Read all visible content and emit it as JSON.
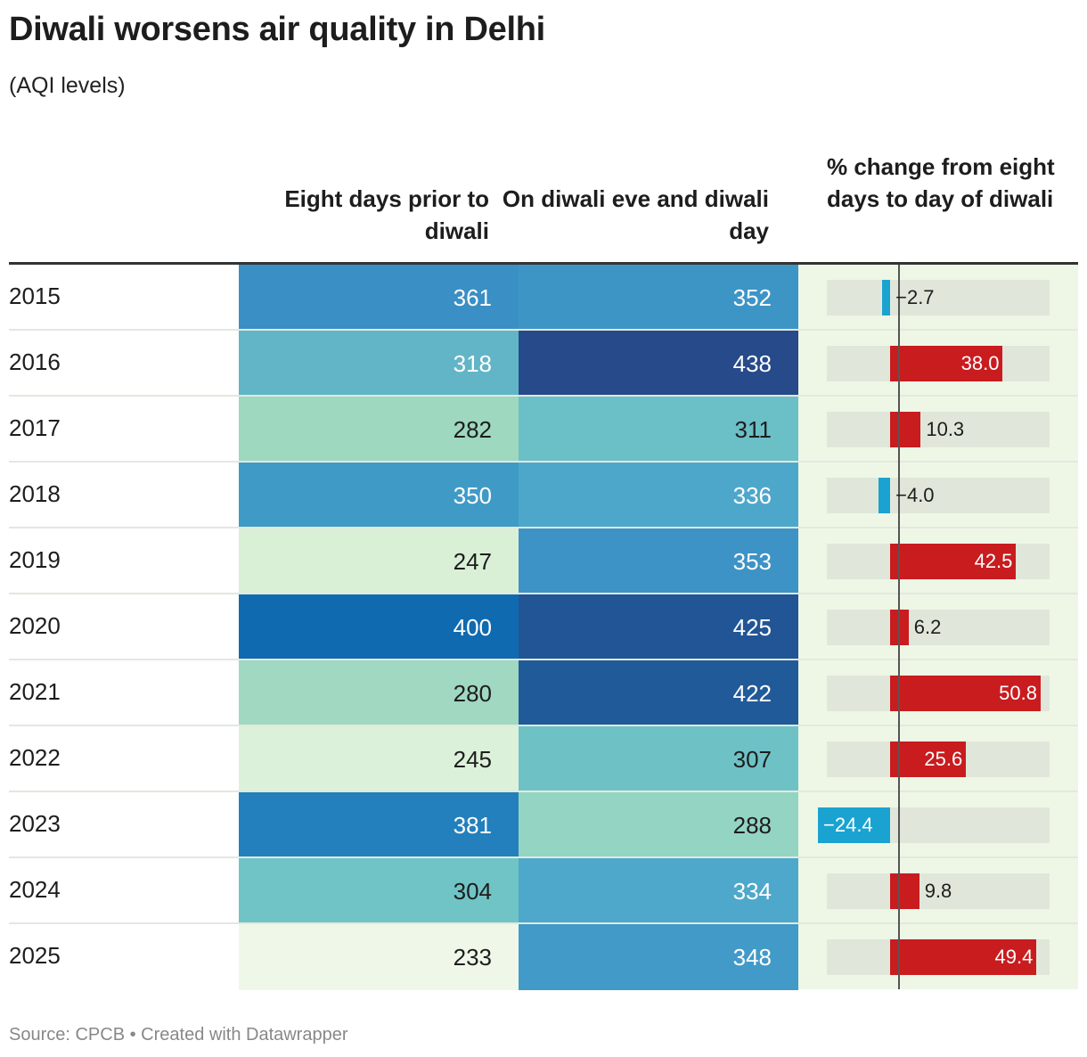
{
  "title": "Diwali worsens air quality in Delhi",
  "subtitle": "(AQI levels)",
  "headers": {
    "col1": "Eight days prior to diwali",
    "col2": "On diwali eve and diwali day",
    "col3": "% change from eight days to day of diwali"
  },
  "source": "Source: CPCB • Created with Datawrapper",
  "colors": {
    "positive": "#c81c1f",
    "negative": "#1aa3d0",
    "track": "#e0e7da",
    "column_bg": "#eef7e6"
  },
  "chart_data": {
    "type": "table",
    "bar_range": [
      -24.4,
      50.8
    ],
    "rows": [
      {
        "year": "2015",
        "prior": "361",
        "prior_color": "#3a8fc4",
        "diwali": "352",
        "diwali_color": "#3d95c6",
        "change": "−2.7",
        "change_value": -2.7
      },
      {
        "year": "2016",
        "prior": "318",
        "prior_color": "#62b5c6",
        "diwali": "438",
        "diwali_color": "#264a8a",
        "change": "38.0",
        "change_value": 38.0
      },
      {
        "year": "2017",
        "prior": "282",
        "prior_color": "#9dd8bf",
        "diwali": "311",
        "diwali_color": "#6bbfc6",
        "change": "10.3",
        "change_value": 10.3
      },
      {
        "year": "2018",
        "prior": "350",
        "prior_color": "#3f9ac6",
        "diwali": "336",
        "diwali_color": "#4da7cb",
        "change": "−4.0",
        "change_value": -4.0
      },
      {
        "year": "2019",
        "prior": "247",
        "prior_color": "#d9f0d6",
        "diwali": "353",
        "diwali_color": "#3d93c5",
        "change": "42.5",
        "change_value": 42.5
      },
      {
        "year": "2020",
        "prior": "400",
        "prior_color": "#0f6ab0",
        "diwali": "425",
        "diwali_color": "#215596",
        "change": "6.2",
        "change_value": 6.2
      },
      {
        "year": "2021",
        "prior": "280",
        "prior_color": "#a0d8c2",
        "diwali": "422",
        "diwali_color": "#215a99",
        "change": "50.8",
        "change_value": 50.8
      },
      {
        "year": "2022",
        "prior": "245",
        "prior_color": "#dcf1d9",
        "diwali": "307",
        "diwali_color": "#6ec2c6",
        "change": "25.6",
        "change_value": 25.6
      },
      {
        "year": "2023",
        "prior": "381",
        "prior_color": "#2380bc",
        "diwali": "288",
        "diwali_color": "#94d4c2",
        "change": "−24.4",
        "change_value": -24.4
      },
      {
        "year": "2024",
        "prior": "304",
        "prior_color": "#70c4c6",
        "diwali": "334",
        "diwali_color": "#4ea8cb",
        "change": "9.8",
        "change_value": 9.8
      },
      {
        "year": "2025",
        "prior": "233",
        "prior_color": "#eff8e8",
        "diwali": "348",
        "diwali_color": "#419ac8",
        "change": "49.4",
        "change_value": 49.4
      }
    ]
  }
}
